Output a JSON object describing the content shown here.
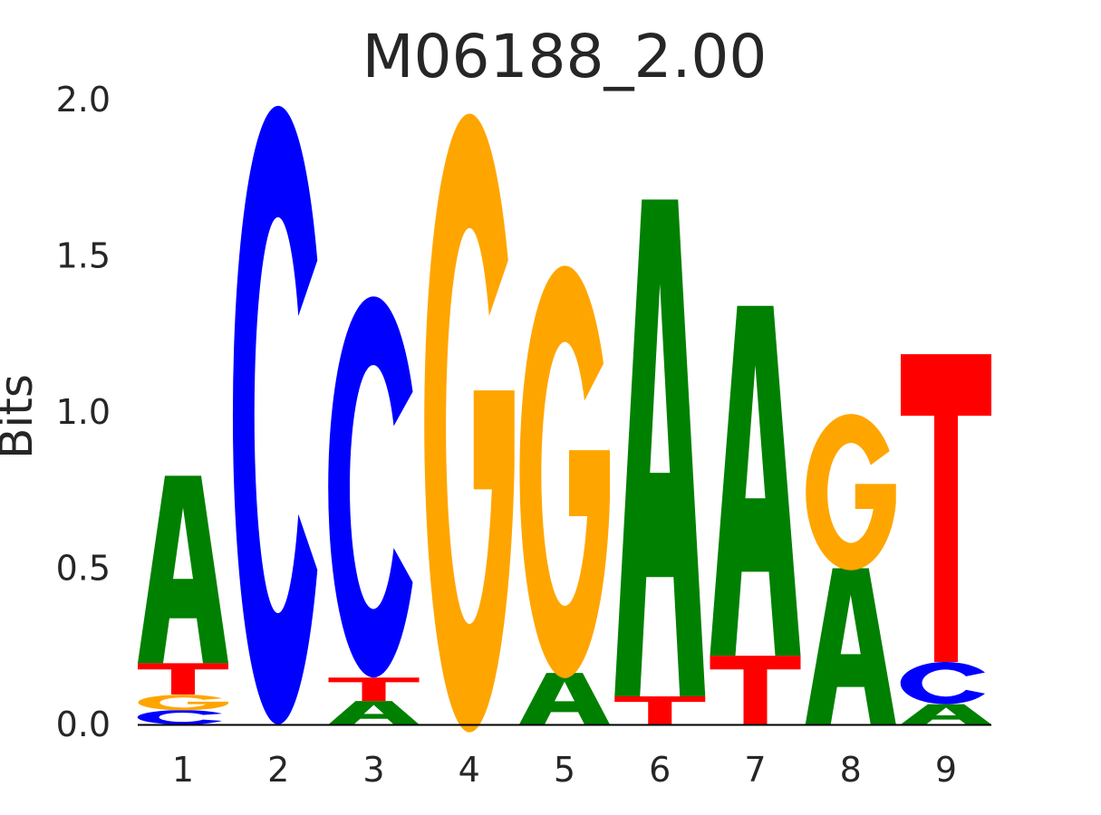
{
  "chart_data": {
    "type": "sequence-logo",
    "title": "M06188_2.00",
    "xlabel": "",
    "ylabel": "Bits",
    "ylim": [
      0,
      2.0
    ],
    "yticks": [
      "0.0",
      "0.5",
      "1.0",
      "1.5",
      "2.0"
    ],
    "grid": false,
    "categories": [
      "1",
      "2",
      "3",
      "4",
      "5",
      "6",
      "7",
      "8",
      "9"
    ],
    "colors": {
      "A": "#008000",
      "C": "#0000ff",
      "G": "#ffa500",
      "T": "#ff0000"
    },
    "positions": [
      [
        {
          "letter": "C",
          "bits": 0.046
        },
        {
          "letter": "G",
          "bits": 0.05
        },
        {
          "letter": "T",
          "bits": 0.1
        },
        {
          "letter": "A",
          "bits": 0.6
        }
      ],
      [
        {
          "letter": "C",
          "bits": 1.98
        }
      ],
      [
        {
          "letter": "A",
          "bits": 0.075
        },
        {
          "letter": "T",
          "bits": 0.075
        },
        {
          "letter": "C",
          "bits": 1.22
        }
      ],
      [
        {
          "letter": "G",
          "bits": 1.98
        }
      ],
      [
        {
          "letter": "A",
          "bits": 0.165
        },
        {
          "letter": "G",
          "bits": 1.32
        }
      ],
      [
        {
          "letter": "T",
          "bits": 0.09
        },
        {
          "letter": "A",
          "bits": 1.59
        }
      ],
      [
        {
          "letter": "T",
          "bits": 0.22
        },
        {
          "letter": "A",
          "bits": 1.12
        }
      ],
      [
        {
          "letter": "A",
          "bits": 0.5
        },
        {
          "letter": "G",
          "bits": 0.5
        }
      ],
      [
        {
          "letter": "A",
          "bits": 0.065
        },
        {
          "letter": "C",
          "bits": 0.135
        },
        {
          "letter": "T",
          "bits": 0.985
        }
      ]
    ]
  }
}
